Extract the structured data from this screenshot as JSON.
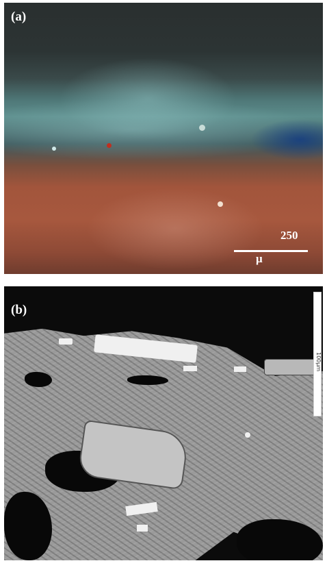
{
  "panel_a": {
    "label": "(a)",
    "scale_value": "250",
    "scale_unit": "μ"
  },
  "panel_b": {
    "label": "(b)",
    "scale_text": "100μm"
  }
}
